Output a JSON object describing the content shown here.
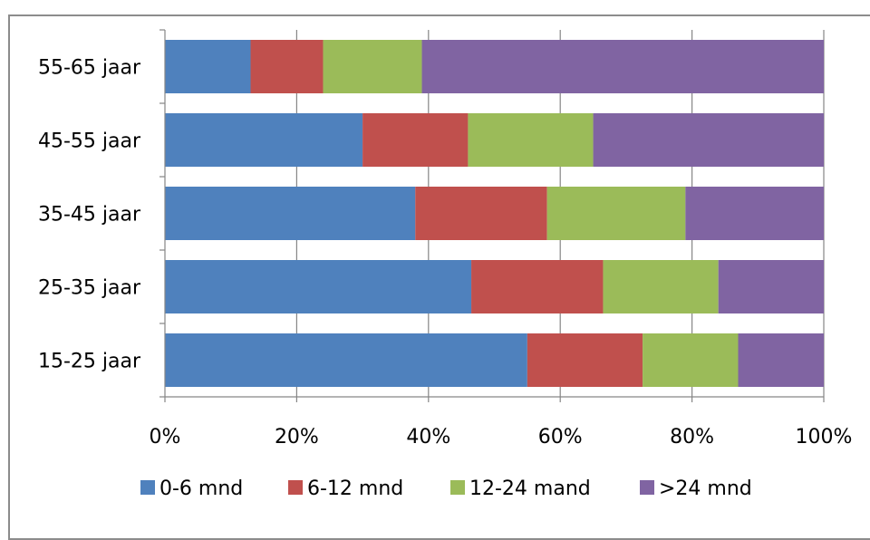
{
  "title": "",
  "chart_data": {
    "type": "bar",
    "orientation": "horizontal",
    "stacking": "percent",
    "categories": [
      "55-65 jaar",
      "45-55 jaar",
      "35-45 jaar",
      "25-35 jaar",
      "15-25 jaar"
    ],
    "series": [
      {
        "name": "0-6 mnd",
        "color": "#4f81bd",
        "values": [
          13,
          30,
          38,
          46.5,
          55
        ]
      },
      {
        "name": "6-12 mnd",
        "color": "#c0504d",
        "values": [
          11,
          16,
          20,
          20,
          17.5
        ]
      },
      {
        "name": "12-24 mand",
        "color": "#9bbb59",
        "values": [
          15,
          19,
          21,
          17.5,
          14.5
        ]
      },
      {
        "name": ">24 mnd",
        "color": "#8064a2",
        "values": [
          61,
          35,
          21,
          16,
          13
        ]
      }
    ],
    "xlim": [
      0,
      100
    ],
    "xticks": [
      "0%",
      "20%",
      "40%",
      "60%",
      "80%",
      "100%"
    ],
    "xlabel": "",
    "ylabel": "",
    "grid": "vertical major gridlines",
    "legend": "bottom"
  }
}
